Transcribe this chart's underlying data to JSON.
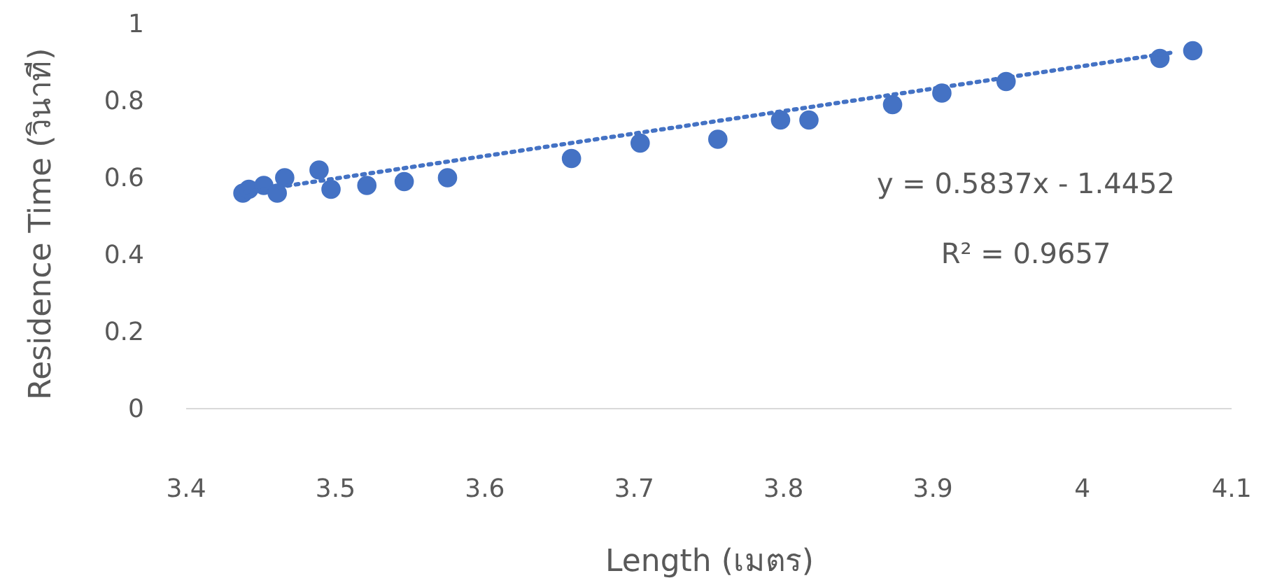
{
  "chart_data": {
    "type": "scatter",
    "xlabel": "Length (เมตร)",
    "ylabel": "Residence Time (วินาที)",
    "xlim": [
      3.4,
      4.1
    ],
    "xticks": [
      3.4,
      3.5,
      3.6,
      3.7,
      3.8,
      3.9,
      4,
      4.1
    ],
    "ylim": [
      0,
      1
    ],
    "yticks": [
      0,
      0.2,
      0.4,
      0.6,
      0.8,
      1
    ],
    "grid": false,
    "annotations": [
      "y = 0.5837x - 1.4452",
      "R² = 0.9657"
    ],
    "series": [
      {
        "color": "#4472c4",
        "marker": "circle",
        "x": [
          3.438,
          3.442,
          3.452,
          3.461,
          3.466,
          3.489,
          3.497,
          3.521,
          3.546,
          3.575,
          3.658,
          3.704,
          3.756,
          3.798,
          3.817,
          3.873,
          3.906,
          3.949,
          4.052,
          4.074
        ],
        "values": [
          0.56,
          0.57,
          0.58,
          0.56,
          0.6,
          0.62,
          0.57,
          0.58,
          0.59,
          0.6,
          0.65,
          0.69,
          0.7,
          0.75,
          0.75,
          0.79,
          0.82,
          0.85,
          0.91,
          0.93
        ]
      },
      {
        "type": "line",
        "color": "#4472c4",
        "line_style": "dotted",
        "marker": "none",
        "x": [
          3.44,
          4.06
        ],
        "values": [
          0.563,
          0.925
        ]
      }
    ]
  }
}
